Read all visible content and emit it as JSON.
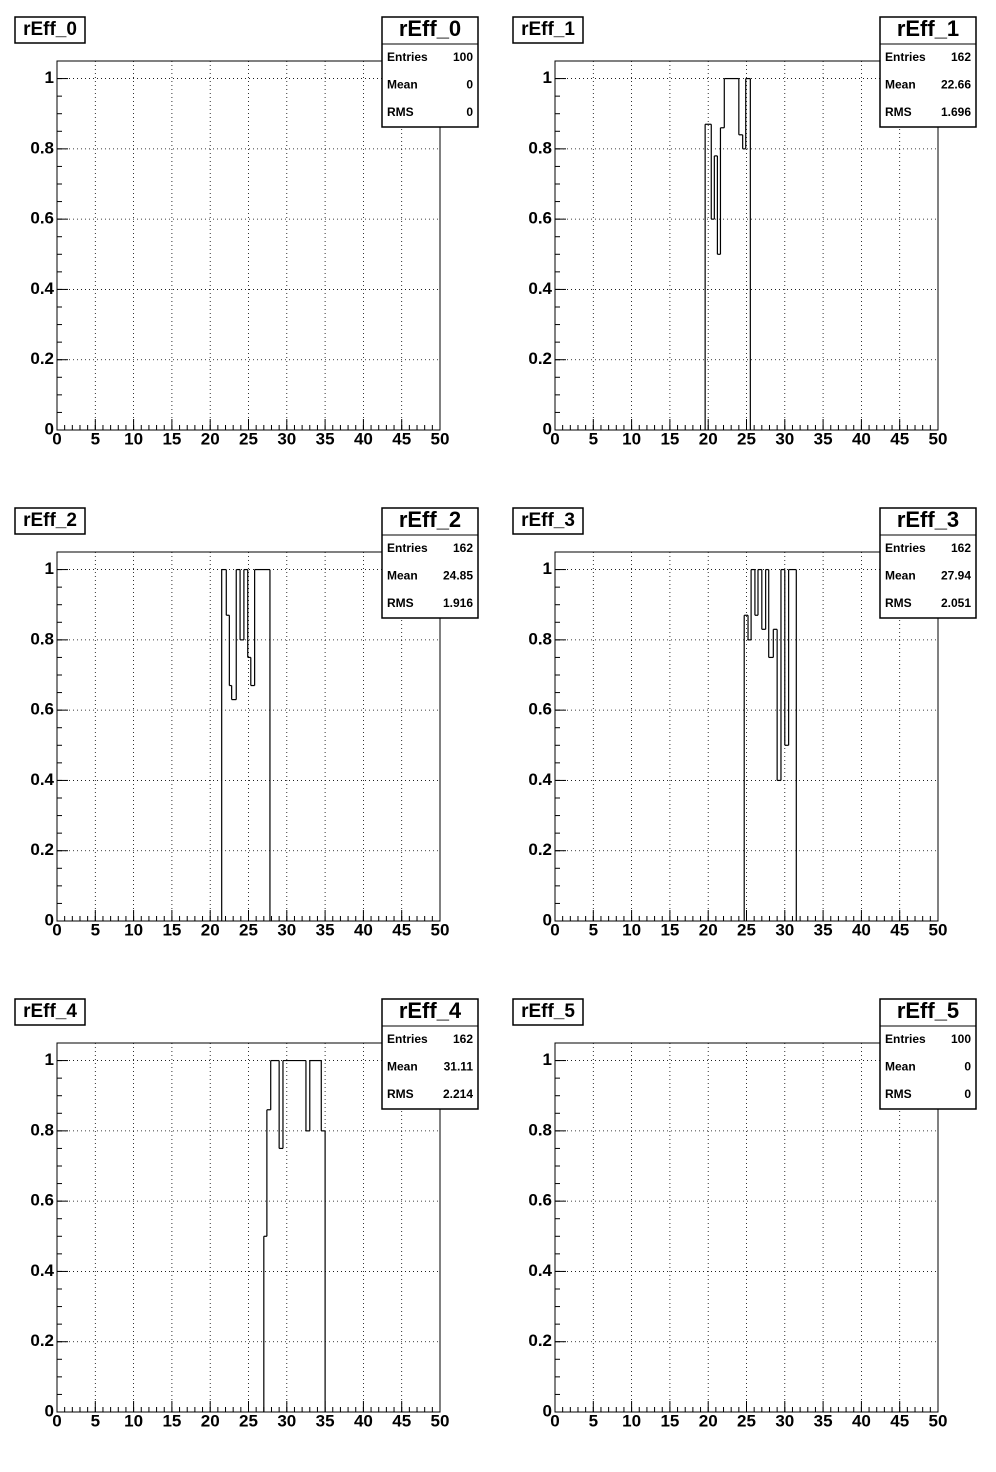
{
  "chart_data": [
    {
      "type": "histogram",
      "title": "rEff_0",
      "bins": [],
      "values": [],
      "xlim": [
        0,
        50
      ],
      "ylim": [
        0,
        1.05
      ],
      "xticks": [
        0,
        5,
        10,
        15,
        20,
        25,
        30,
        35,
        40,
        45,
        50
      ],
      "yticks": [
        0,
        0.2,
        0.4,
        0.6,
        0.8,
        1
      ],
      "grid": true,
      "color": "#000000",
      "stats": [
        {
          "label": "Entries",
          "value": 100
        },
        {
          "label": "Mean",
          "value": 0
        },
        {
          "label": "RMS",
          "value": 0
        }
      ]
    },
    {
      "type": "histogram",
      "title": "rEff_1",
      "bins": [
        19.6,
        20.4,
        20.8,
        21.2,
        21.6,
        22.1,
        24.0,
        24.5,
        24.9,
        25.5
      ],
      "values": [
        0.87,
        0.6,
        0.78,
        0.5,
        0.86,
        1,
        0.84,
        0.8,
        1
      ],
      "xlim": [
        0,
        50
      ],
      "ylim": [
        0,
        1.05
      ],
      "xticks": [
        0,
        5,
        10,
        15,
        20,
        25,
        30,
        35,
        40,
        45,
        50
      ],
      "yticks": [
        0,
        0.2,
        0.4,
        0.6,
        0.8,
        1
      ],
      "grid": true,
      "color": "#000000",
      "stats": [
        {
          "label": "Entries",
          "value": 162
        },
        {
          "label": "Mean",
          "value": 22.66
        },
        {
          "label": "RMS",
          "value": 1.696
        }
      ]
    },
    {
      "type": "histogram",
      "title": "rEff_2",
      "bins": [
        21.5,
        22.1,
        22.5,
        22.8,
        23.4,
        23.9,
        24.4,
        24.9,
        25.3,
        25.8,
        27.8
      ],
      "values": [
        1,
        0.87,
        0.67,
        0.63,
        1,
        0.8,
        1,
        0.75,
        0.67,
        1
      ],
      "xlim": [
        0,
        50
      ],
      "ylim": [
        0,
        1.05
      ],
      "xticks": [
        0,
        5,
        10,
        15,
        20,
        25,
        30,
        35,
        40,
        45,
        50
      ],
      "yticks": [
        0,
        0.2,
        0.4,
        0.6,
        0.8,
        1
      ],
      "grid": true,
      "color": "#000000",
      "stats": [
        {
          "label": "Entries",
          "value": 162
        },
        {
          "label": "Mean",
          "value": 24.85
        },
        {
          "label": "RMS",
          "value": 1.916
        }
      ]
    },
    {
      "type": "histogram",
      "title": "rEff_3",
      "bins": [
        24.7,
        25.2,
        25.6,
        26.1,
        26.5,
        27.0,
        27.5,
        27.9,
        28.5,
        29.0,
        29.5,
        30.0,
        30.5,
        31.5
      ],
      "values": [
        0.87,
        0.8,
        1,
        0.87,
        1,
        0.83,
        1,
        0.75,
        0.83,
        0.4,
        1,
        0.5,
        1
      ],
      "xlim": [
        0,
        50
      ],
      "ylim": [
        0,
        1.05
      ],
      "xticks": [
        0,
        5,
        10,
        15,
        20,
        25,
        30,
        35,
        40,
        45,
        50
      ],
      "yticks": [
        0,
        0.2,
        0.4,
        0.6,
        0.8,
        1
      ],
      "grid": true,
      "color": "#000000",
      "stats": [
        {
          "label": "Entries",
          "value": 162
        },
        {
          "label": "Mean",
          "value": 27.94
        },
        {
          "label": "RMS",
          "value": 2.051
        }
      ]
    },
    {
      "type": "histogram",
      "title": "rEff_4",
      "bins": [
        27.0,
        27.4,
        27.9,
        29.0,
        29.5,
        32.5,
        33.0,
        34.5,
        35.0
      ],
      "values": [
        0.5,
        0.86,
        1,
        0.75,
        1,
        0.8,
        1,
        0.8
      ],
      "xlim": [
        0,
        50
      ],
      "ylim": [
        0,
        1.05
      ],
      "xticks": [
        0,
        5,
        10,
        15,
        20,
        25,
        30,
        35,
        40,
        45,
        50
      ],
      "yticks": [
        0,
        0.2,
        0.4,
        0.6,
        0.8,
        1
      ],
      "grid": true,
      "color": "#000000",
      "stats": [
        {
          "label": "Entries",
          "value": 162
        },
        {
          "label": "Mean",
          "value": 31.11
        },
        {
          "label": "RMS",
          "value": 2.214
        }
      ]
    },
    {
      "type": "histogram",
      "title": "rEff_5",
      "bins": [],
      "values": [],
      "xlim": [
        0,
        50
      ],
      "ylim": [
        0,
        1.05
      ],
      "xticks": [
        0,
        5,
        10,
        15,
        20,
        25,
        30,
        35,
        40,
        45,
        50
      ],
      "yticks": [
        0,
        0.2,
        0.4,
        0.6,
        0.8,
        1
      ],
      "grid": true,
      "color": "#000000",
      "stats": [
        {
          "label": "Entries",
          "value": 100
        },
        {
          "label": "Mean",
          "value": 0
        },
        {
          "label": "RMS",
          "value": 0
        }
      ]
    }
  ]
}
